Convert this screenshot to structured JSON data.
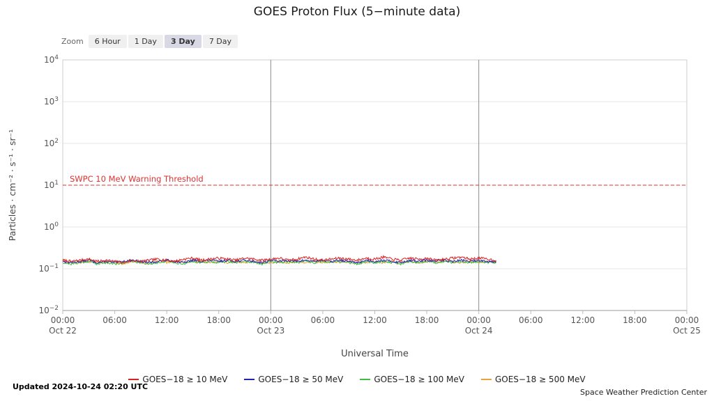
{
  "page": {
    "title": "GOES Proton Flux (5−minute data)",
    "updated": "Updated 2024-10-24 02:20 UTC",
    "credit": "Space Weather Prediction Center"
  },
  "zoom": {
    "label": "Zoom",
    "options": [
      "6 Hour",
      "1 Day",
      "3 Day",
      "7 Day"
    ],
    "selected": "3 Day"
  },
  "chart_data": {
    "type": "line",
    "title": "GOES Proton Flux (5−minute data)",
    "xlabel": "Universal Time",
    "ylabel": "Particles · cm⁻² · s⁻¹ · sr⁻¹",
    "y_scale": "log10",
    "y_exponent_range": [
      -2,
      4
    ],
    "x_unit": "hours since 2024-10-22 00:00 UTC",
    "x_range_hours": [
      0,
      72
    ],
    "x_ticks": [
      {
        "hour": 0,
        "label": "00:00",
        "date": "Oct 22"
      },
      {
        "hour": 6,
        "label": "06:00"
      },
      {
        "hour": 12,
        "label": "12:00"
      },
      {
        "hour": 18,
        "label": "18:00"
      },
      {
        "hour": 24,
        "label": "00:00",
        "date": "Oct 23"
      },
      {
        "hour": 30,
        "label": "06:00"
      },
      {
        "hour": 36,
        "label": "12:00"
      },
      {
        "hour": 42,
        "label": "18:00"
      },
      {
        "hour": 48,
        "label": "00:00",
        "date": "Oct 24"
      },
      {
        "hour": 54,
        "label": "06:00"
      },
      {
        "hour": 60,
        "label": "12:00"
      },
      {
        "hour": 66,
        "label": "18:00"
      },
      {
        "hour": 72,
        "label": "00:00",
        "date": "Oct 25"
      }
    ],
    "day_boundary_lines_hours": [
      24,
      48
    ],
    "grid": "horizontal-decades",
    "legend_position": "bottom",
    "threshold": {
      "label": "SWPC 10 MeV Warning Threshold",
      "value": 10,
      "color": "#e03030",
      "style": "dashed"
    },
    "series": [
      {
        "name": "GOES−18 ≥ 10 MeV",
        "color": "#dc1f1f",
        "sample_interval_hours": 1,
        "noise": 0.07,
        "seed": 7,
        "values": [
          0.16,
          0.15,
          0.16,
          0.17,
          0.15,
          0.16,
          0.15,
          0.14,
          0.16,
          0.15,
          0.16,
          0.17,
          0.16,
          0.15,
          0.17,
          0.18,
          0.16,
          0.17,
          0.18,
          0.17,
          0.16,
          0.18,
          0.17,
          0.16,
          0.17,
          0.18,
          0.16,
          0.17,
          0.19,
          0.17,
          0.16,
          0.17,
          0.18,
          0.17,
          0.16,
          0.18,
          0.17,
          0.19,
          0.17,
          0.16,
          0.18,
          0.17,
          0.18,
          0.16,
          0.17,
          0.18,
          0.19,
          0.17,
          0.18,
          0.17,
          0.16
        ]
      },
      {
        "name": "GOES−18 ≥ 50 MeV",
        "color": "#2222b4",
        "sample_interval_hours": 1,
        "noise": 0.06,
        "seed": 13,
        "values": [
          0.15,
          0.14,
          0.15,
          0.16,
          0.14,
          0.15,
          0.14,
          0.15,
          0.16,
          0.15,
          0.14,
          0.15,
          0.16,
          0.15,
          0.14,
          0.16,
          0.15,
          0.16,
          0.15,
          0.16,
          0.15,
          0.16,
          0.15,
          0.14,
          0.16,
          0.15,
          0.16,
          0.15,
          0.16,
          0.15,
          0.16,
          0.15,
          0.16,
          0.15,
          0.14,
          0.16,
          0.15,
          0.16,
          0.15,
          0.14,
          0.16,
          0.15,
          0.16,
          0.15,
          0.16,
          0.15,
          0.16,
          0.15,
          0.16,
          0.15,
          0.15
        ]
      },
      {
        "name": "GOES−18 ≥ 100 MeV",
        "color": "#3fbf3f",
        "sample_interval_hours": 1,
        "noise": 0.06,
        "seed": 21,
        "values": [
          0.14,
          0.13,
          0.14,
          0.15,
          0.13,
          0.14,
          0.13,
          0.14,
          0.15,
          0.14,
          0.13,
          0.14,
          0.15,
          0.14,
          0.13,
          0.15,
          0.14,
          0.15,
          0.14,
          0.15,
          0.14,
          0.15,
          0.14,
          0.13,
          0.15,
          0.14,
          0.15,
          0.14,
          0.15,
          0.14,
          0.15,
          0.14,
          0.15,
          0.14,
          0.13,
          0.15,
          0.14,
          0.15,
          0.14,
          0.13,
          0.15,
          0.14,
          0.15,
          0.14,
          0.15,
          0.14,
          0.15,
          0.14,
          0.15,
          0.14,
          0.14
        ]
      },
      {
        "name": "GOES−18 ≥ 500 MeV",
        "color": "#e8a33d",
        "sample_interval_hours": 1,
        "noise": 0.06,
        "seed": 29,
        "values": [
          0.15,
          0.14,
          0.14,
          0.15,
          0.14,
          0.15,
          0.14,
          0.13,
          0.15,
          0.14,
          0.14,
          0.15,
          0.14,
          0.15,
          0.14,
          0.15,
          0.15,
          0.14,
          0.15,
          0.14,
          0.15,
          0.14,
          0.15,
          0.14,
          0.14,
          0.15,
          0.14,
          0.15,
          0.14,
          0.15,
          0.14,
          0.15,
          0.14,
          0.15,
          0.14,
          0.14,
          0.15,
          0.14,
          0.15,
          0.14,
          0.15,
          0.14,
          0.15,
          0.14,
          0.15,
          0.15,
          0.14,
          0.15,
          0.14,
          0.15,
          0.14
        ]
      }
    ]
  }
}
